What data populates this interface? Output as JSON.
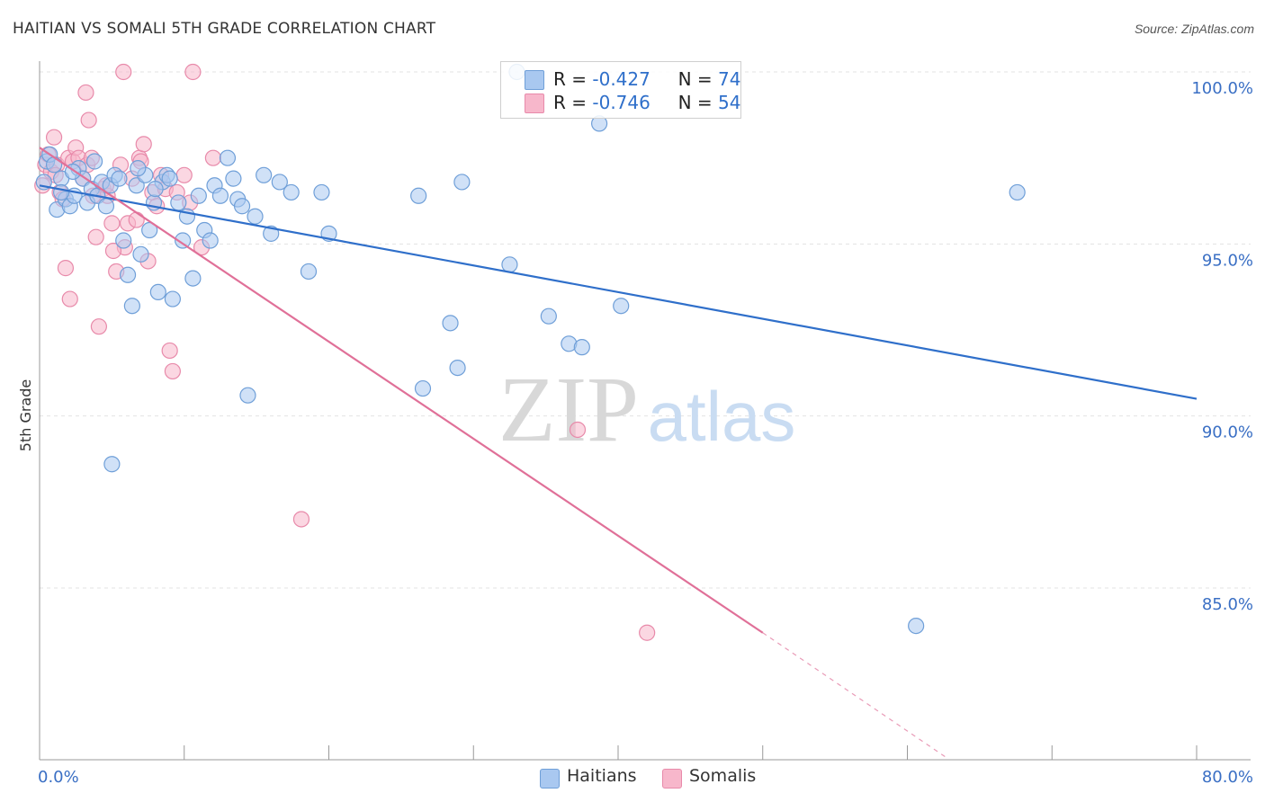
{
  "title": "HAITIAN VS SOMALI 5TH GRADE CORRELATION CHART",
  "source": "Source: ZipAtlas.com",
  "watermark": {
    "zip": "ZIP",
    "atlas": "atlas"
  },
  "colors": {
    "haitians_fill": "#a9c8f0",
    "haitians_stroke": "#6f9fd8",
    "haitians_line": "#2f6fca",
    "somalis_fill": "#f7b7cb",
    "somalis_stroke": "#e88aaa",
    "somalis_line": "#e07098",
    "axis_label_color": "#3a6fc4",
    "grid": "#e3e3e3"
  },
  "legend": {
    "haitians": {
      "r_label": "R = ",
      "r_value": "-0.427",
      "n_label": "N = ",
      "n_value": "74"
    },
    "somalis": {
      "r_label": "R = ",
      "r_value": "-0.746",
      "n_label": "N = ",
      "n_value": "54"
    }
  },
  "bottom_legend": {
    "haitians": "Haitians",
    "somalis": "Somalis"
  },
  "chart_data": {
    "type": "scatter",
    "title": "HAITIAN VS SOMALI 5TH GRADE CORRELATION CHART",
    "xlabel": "",
    "ylabel": "5th Grade",
    "xlim": [
      0,
      80
    ],
    "ylim": [
      80,
      101
    ],
    "x_tick_labels": [
      {
        "value": 0,
        "label": "0.0%"
      },
      {
        "value": 80,
        "label": "80.0%"
      }
    ],
    "y_tick_labels": [
      {
        "value": 100,
        "label": "100.0%"
      },
      {
        "value": 95,
        "label": "95.0%"
      },
      {
        "value": 90,
        "label": "90.0%"
      },
      {
        "value": 85,
        "label": "85.0%"
      }
    ],
    "grid": true,
    "series": [
      {
        "name": "Haitians",
        "trend": {
          "x0": 0,
          "y0": 96.7,
          "x1": 80,
          "y1": 90.5
        },
        "points": [
          [
            0.3,
            96.8
          ],
          [
            0.5,
            97.4
          ],
          [
            0.7,
            97.6
          ],
          [
            1.0,
            97.3
          ],
          [
            1.2,
            96.0
          ],
          [
            1.5,
            96.9
          ],
          [
            1.8,
            96.3
          ],
          [
            2.1,
            96.1
          ],
          [
            2.4,
            96.4
          ],
          [
            2.7,
            97.2
          ],
          [
            3.0,
            96.9
          ],
          [
            3.3,
            96.2
          ],
          [
            3.6,
            96.6
          ],
          [
            4.0,
            96.4
          ],
          [
            4.3,
            96.8
          ],
          [
            4.6,
            96.1
          ],
          [
            4.9,
            96.7
          ],
          [
            5.2,
            97.0
          ],
          [
            5.5,
            96.9
          ],
          [
            5.8,
            95.1
          ],
          [
            6.1,
            94.1
          ],
          [
            6.4,
            93.2
          ],
          [
            6.7,
            96.7
          ],
          [
            7.0,
            94.7
          ],
          [
            7.3,
            97.0
          ],
          [
            7.6,
            95.4
          ],
          [
            7.9,
            96.2
          ],
          [
            8.2,
            93.6
          ],
          [
            8.5,
            96.8
          ],
          [
            8.8,
            97.0
          ],
          [
            9.2,
            93.4
          ],
          [
            9.6,
            96.2
          ],
          [
            9.9,
            95.1
          ],
          [
            10.2,
            95.8
          ],
          [
            10.6,
            94.0
          ],
          [
            11.0,
            96.4
          ],
          [
            11.4,
            95.4
          ],
          [
            11.8,
            95.1
          ],
          [
            12.1,
            96.7
          ],
          [
            12.5,
            96.4
          ],
          [
            13.0,
            97.5
          ],
          [
            13.4,
            96.9
          ],
          [
            13.7,
            96.3
          ],
          [
            14.0,
            96.1
          ],
          [
            14.4,
            90.6
          ],
          [
            14.9,
            95.8
          ],
          [
            15.5,
            97.0
          ],
          [
            16.0,
            95.3
          ],
          [
            16.6,
            96.8
          ],
          [
            17.4,
            96.5
          ],
          [
            18.6,
            94.2
          ],
          [
            19.5,
            96.5
          ],
          [
            20.0,
            95.3
          ],
          [
            26.2,
            96.4
          ],
          [
            26.5,
            90.8
          ],
          [
            28.4,
            92.7
          ],
          [
            28.9,
            91.4
          ],
          [
            29.2,
            96.8
          ],
          [
            32.5,
            94.4
          ],
          [
            33.0,
            100.0
          ],
          [
            35.2,
            92.9
          ],
          [
            36.6,
            92.1
          ],
          [
            37.5,
            92.0
          ],
          [
            38.7,
            98.5
          ],
          [
            40.2,
            93.2
          ],
          [
            60.6,
            83.9
          ],
          [
            67.6,
            96.5
          ],
          [
            5.0,
            88.6
          ],
          [
            1.5,
            96.5
          ],
          [
            2.3,
            97.1
          ],
          [
            3.8,
            97.4
          ],
          [
            6.8,
            97.2
          ],
          [
            8.0,
            96.6
          ],
          [
            9.0,
            96.9
          ]
        ]
      },
      {
        "name": "Somalis",
        "trend": {
          "x0": 0,
          "y0": 97.8,
          "x1": 50,
          "y1": 83.7
        },
        "trend_dashed": {
          "x0": 50,
          "y0": 83.7,
          "x1": 62.6,
          "y1": 80.1
        },
        "points": [
          [
            0.2,
            96.7
          ],
          [
            0.4,
            97.3
          ],
          [
            0.6,
            97.6
          ],
          [
            0.8,
            97.1
          ],
          [
            1.0,
            98.1
          ],
          [
            1.2,
            97.3
          ],
          [
            1.4,
            96.5
          ],
          [
            1.6,
            96.3
          ],
          [
            1.8,
            94.3
          ],
          [
            2.0,
            97.5
          ],
          [
            2.3,
            97.4
          ],
          [
            2.5,
            97.8
          ],
          [
            2.7,
            97.5
          ],
          [
            3.0,
            96.9
          ],
          [
            3.3,
            97.3
          ],
          [
            3.6,
            97.5
          ],
          [
            3.9,
            95.2
          ],
          [
            4.1,
            92.6
          ],
          [
            4.4,
            96.6
          ],
          [
            4.7,
            96.4
          ],
          [
            5.0,
            95.6
          ],
          [
            5.3,
            94.2
          ],
          [
            5.6,
            97.3
          ],
          [
            5.9,
            94.9
          ],
          [
            6.1,
            95.6
          ],
          [
            6.4,
            96.9
          ],
          [
            6.7,
            95.7
          ],
          [
            6.9,
            97.5
          ],
          [
            7.2,
            97.9
          ],
          [
            7.5,
            94.5
          ],
          [
            7.8,
            96.5
          ],
          [
            8.1,
            96.1
          ],
          [
            8.4,
            97.0
          ],
          [
            8.7,
            96.6
          ],
          [
            9.0,
            91.9
          ],
          [
            9.2,
            91.3
          ],
          [
            9.5,
            96.5
          ],
          [
            10.0,
            97.0
          ],
          [
            10.4,
            96.2
          ],
          [
            11.2,
            94.9
          ],
          [
            12.0,
            97.5
          ],
          [
            18.1,
            87.0
          ],
          [
            37.2,
            89.6
          ],
          [
            42.0,
            83.7
          ],
          [
            2.1,
            93.4
          ],
          [
            3.2,
            99.4
          ],
          [
            3.4,
            98.6
          ],
          [
            5.8,
            100.0
          ],
          [
            10.6,
            100.0
          ],
          [
            5.1,
            94.8
          ],
          [
            3.7,
            96.4
          ],
          [
            1.1,
            97.0
          ],
          [
            7.0,
            97.4
          ],
          [
            4.6,
            96.7
          ]
        ]
      }
    ]
  }
}
